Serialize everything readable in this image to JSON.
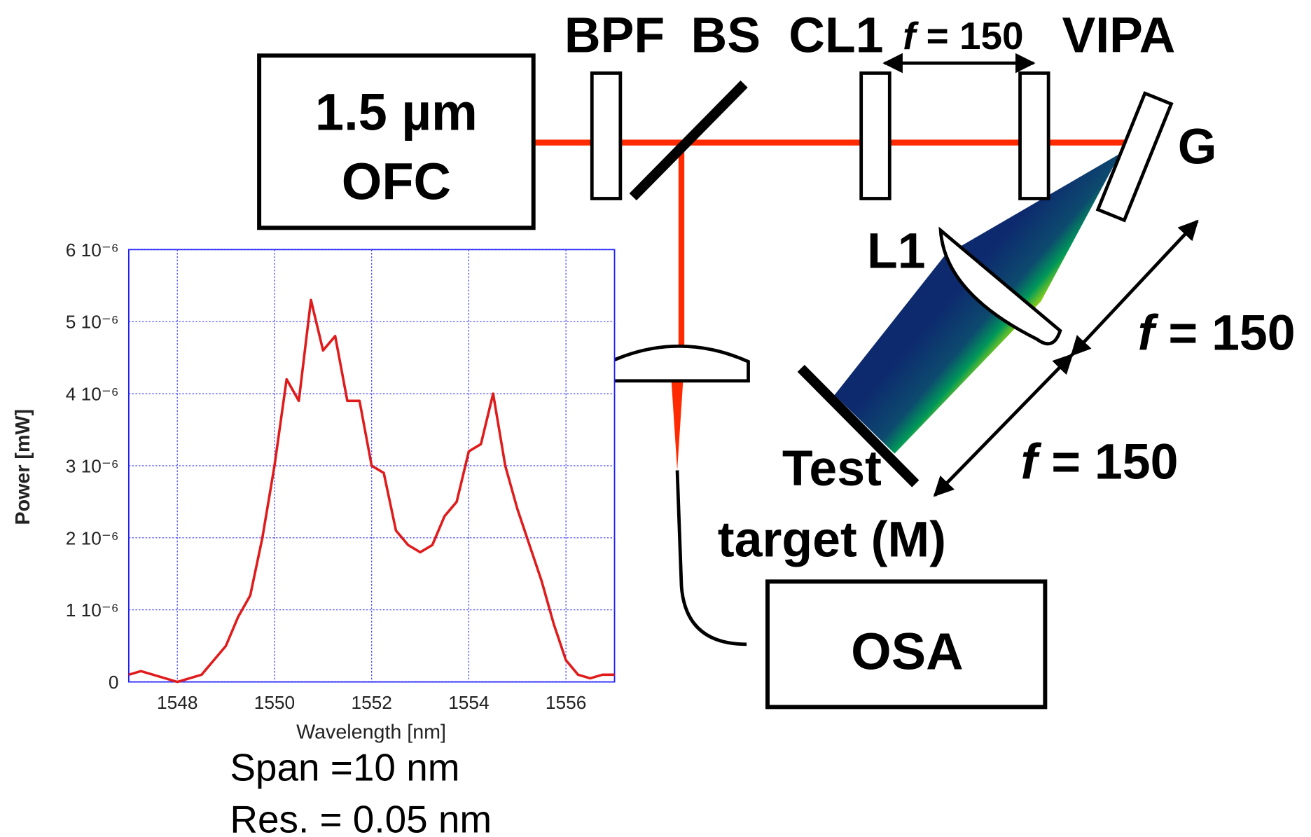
{
  "labels": {
    "ofc_line1": "1.5 µm",
    "ofc_line2": "OFC",
    "bpf": "BPF",
    "bs": "BS",
    "cl1": "CL1",
    "vipa": "VIPA",
    "f_top": "f = 150",
    "g": "G",
    "l1": "L1",
    "f_right": "f = 150",
    "f_lower": "f = 150",
    "test_line1": "Test",
    "test_line2": "target (M)",
    "osa": "OSA"
  },
  "chart_data": {
    "type": "line",
    "x_label": "Wavelength [nm]",
    "y_label": "Power [mW]",
    "color": "#e01b1b",
    "grid": true,
    "x": [
      1547,
      1547.25,
      1547.5,
      1547.75,
      1548,
      1548.25,
      1548.5,
      1548.75,
      1549,
      1549.25,
      1549.5,
      1549.75,
      1550,
      1550.25,
      1550.5,
      1550.75,
      1551,
      1551.25,
      1551.5,
      1551.75,
      1552,
      1552.25,
      1552.5,
      1552.75,
      1553,
      1553.25,
      1553.5,
      1553.75,
      1554,
      1554.25,
      1554.5,
      1554.75,
      1555,
      1555.25,
      1555.5,
      1555.75,
      1556,
      1556.25,
      1556.5,
      1556.75,
      1557
    ],
    "values": [
      1e-07,
      1.5e-07,
      1e-07,
      5e-08,
      0,
      5e-08,
      1e-07,
      3e-07,
      5e-07,
      9e-07,
      1.2e-06,
      2e-06,
      3e-06,
      4.2e-06,
      3.9e-06,
      5.3e-06,
      4.6e-06,
      4.8e-06,
      3.9e-06,
      3.9e-06,
      3e-06,
      2.9e-06,
      2.1e-06,
      1.9e-06,
      1.8e-06,
      1.9e-06,
      2.3e-06,
      2.5e-06,
      3.2e-06,
      3.3e-06,
      4e-06,
      3e-06,
      2.4e-06,
      1.9e-06,
      1.4e-06,
      8e-07,
      3e-07,
      1e-07,
      5e-08,
      1e-07,
      1e-07
    ],
    "xlim": [
      1547,
      1557
    ],
    "xticks": [
      1548,
      1550,
      1552,
      1554,
      1556
    ],
    "ylim": [
      0,
      6e-06
    ],
    "yticks": [
      0,
      {
        "value": 1e-06,
        "label": "1 10⁻⁶"
      },
      {
        "value": 2e-06,
        "label": "2 10⁻⁶"
      },
      {
        "value": 3e-06,
        "label": "3 10⁻⁶"
      },
      {
        "value": 4e-06,
        "label": "4 10⁻⁶"
      },
      {
        "value": 5e-06,
        "label": "5 10⁻⁶"
      },
      {
        "value": 6e-06,
        "label": "6 10⁻⁶"
      }
    ],
    "notes": [
      "Span =10 nm",
      "Res. = 0.05 nm"
    ]
  }
}
